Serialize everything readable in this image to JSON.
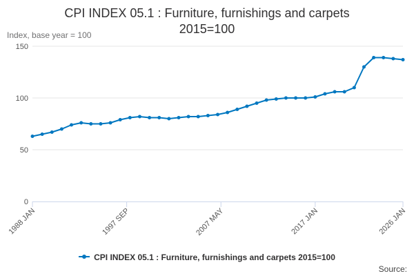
{
  "chart_data": {
    "type": "line",
    "title": "CPI INDEX 05.1 : Furniture, furnishings and carpets\n2015=100",
    "ylabel": "Index, base year = 100",
    "xlabel": "",
    "ylim": [
      0,
      150
    ],
    "yticks": [
      0,
      50,
      100,
      150
    ],
    "xlim": [
      "1988-01",
      "2026-01"
    ],
    "xticks": [
      "1988 JAN",
      "1997 SEP",
      "2007 MAY",
      "2017 JAN",
      "2026 JAN"
    ],
    "grid": true,
    "legend_position": "bottom",
    "source_label": "Source:",
    "colors": {
      "series": "#0077c0",
      "grid": "#e6e6e6",
      "axis": "#ccd6eb"
    },
    "series": [
      {
        "name": "CPI INDEX 05.1 : Furniture, furnishings and carpets 2015=100",
        "x": [
          "1988-01",
          "1989-01",
          "1990-01",
          "1991-01",
          "1992-01",
          "1993-01",
          "1994-01",
          "1995-01",
          "1996-01",
          "1997-01",
          "1998-01",
          "1999-01",
          "2000-01",
          "2001-01",
          "2002-01",
          "2003-01",
          "2004-01",
          "2005-01",
          "2006-01",
          "2007-01",
          "2008-01",
          "2009-01",
          "2010-01",
          "2011-01",
          "2012-01",
          "2013-01",
          "2014-01",
          "2015-01",
          "2016-01",
          "2017-01",
          "2018-01",
          "2019-01",
          "2020-01",
          "2021-01",
          "2022-01",
          "2023-01",
          "2024-01",
          "2025-01",
          "2026-01"
        ],
        "values": [
          63,
          65,
          67,
          70,
          74,
          76,
          75,
          75,
          76,
          79,
          81,
          82,
          81,
          81,
          80,
          81,
          82,
          82,
          83,
          84,
          86,
          89,
          92,
          95,
          98,
          99,
          100,
          100,
          100,
          101,
          104,
          106,
          106,
          110,
          130,
          139,
          139,
          138,
          137
        ]
      }
    ]
  }
}
